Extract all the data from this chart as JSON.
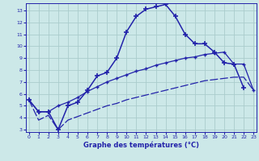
{
  "xlabel": "Graphe des températures (°C)",
  "background_color": "#cce8e8",
  "line_color": "#2222aa",
  "grid_color": "#aacccc",
  "x_ticks": [
    0,
    1,
    2,
    3,
    4,
    5,
    6,
    7,
    8,
    9,
    10,
    11,
    12,
    13,
    14,
    15,
    16,
    17,
    18,
    19,
    20,
    21,
    22,
    23
  ],
  "y_ticks": [
    3,
    4,
    5,
    6,
    7,
    8,
    9,
    10,
    11,
    12,
    13
  ],
  "ylim": [
    2.8,
    13.6
  ],
  "xlim": [
    -0.3,
    23.3
  ],
  "series1_x": [
    0,
    1,
    2,
    3,
    4,
    5,
    6,
    7,
    8,
    9,
    10,
    11,
    12,
    13,
    14,
    15,
    16,
    17,
    18,
    19,
    20,
    21,
    22
  ],
  "series1_y": [
    5.5,
    4.5,
    4.5,
    3.0,
    5.0,
    5.3,
    6.3,
    7.5,
    7.8,
    9.0,
    11.2,
    12.5,
    13.1,
    13.3,
    13.5,
    12.5,
    11.0,
    10.2,
    10.2,
    9.5,
    8.6,
    8.5,
    6.5
  ],
  "series2_x": [
    0,
    1,
    2,
    3,
    4,
    5,
    6,
    7,
    8,
    9,
    10,
    11,
    12,
    13,
    14,
    15,
    16,
    17,
    18,
    19,
    20,
    21,
    22,
    23
  ],
  "series2_y": [
    5.5,
    4.5,
    4.5,
    5.0,
    5.3,
    5.7,
    6.2,
    6.6,
    7.0,
    7.3,
    7.6,
    7.9,
    8.1,
    8.4,
    8.6,
    8.8,
    9.0,
    9.1,
    9.3,
    9.4,
    9.5,
    8.5,
    8.5,
    6.3
  ],
  "series3_x": [
    0,
    1,
    2,
    3,
    4,
    5,
    6,
    7,
    8,
    9,
    10,
    11,
    12,
    13,
    14,
    15,
    16,
    17,
    18,
    19,
    20,
    21,
    22,
    23
  ],
  "series3_y": [
    5.5,
    3.8,
    4.2,
    3.0,
    3.8,
    4.1,
    4.4,
    4.7,
    5.0,
    5.2,
    5.5,
    5.7,
    5.9,
    6.1,
    6.3,
    6.5,
    6.7,
    6.9,
    7.1,
    7.2,
    7.3,
    7.4,
    7.4,
    6.3
  ]
}
